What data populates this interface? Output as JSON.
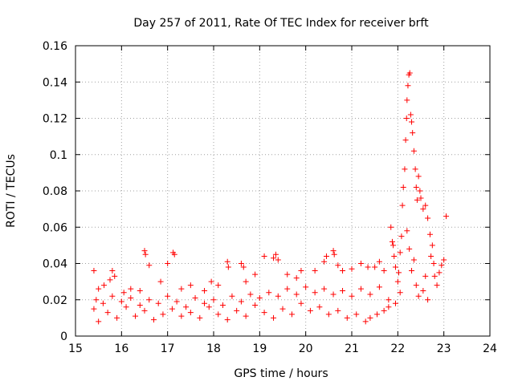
{
  "chart_data": {
    "type": "scatter",
    "title": "Day 257 of 2011, Rate Of TEC Index for receiver brft",
    "xlabel": "GPS time / hours",
    "ylabel": "ROTI / TECUs",
    "xlim": [
      15,
      24
    ],
    "ylim": [
      0,
      0.16
    ],
    "xticks": [
      "15",
      "16",
      "17",
      "18",
      "19",
      "20",
      "21",
      "22",
      "23",
      "24"
    ],
    "yticks": [
      "0",
      "0.02",
      "0.04",
      "0.06",
      "0.08",
      "0.1",
      "0.12",
      "0.14",
      "0.16"
    ],
    "grid": true,
    "marker": "+",
    "color": "#ff0000",
    "series": [
      {
        "name": "ROTI",
        "points": [
          [
            15.4,
            0.036
          ],
          [
            15.5,
            0.026
          ],
          [
            15.62,
            0.028
          ],
          [
            15.75,
            0.031
          ],
          [
            15.8,
            0.036
          ],
          [
            15.85,
            0.033
          ],
          [
            16.05,
            0.024
          ],
          [
            16.2,
            0.026
          ],
          [
            16.4,
            0.025
          ],
          [
            16.5,
            0.047
          ],
          [
            16.52,
            0.045
          ],
          [
            16.6,
            0.039
          ],
          [
            16.85,
            0.03
          ],
          [
            17.0,
            0.04
          ],
          [
            17.12,
            0.046
          ],
          [
            17.15,
            0.045
          ],
          [
            17.3,
            0.026
          ],
          [
            17.5,
            0.028
          ],
          [
            17.8,
            0.025
          ],
          [
            17.95,
            0.03
          ],
          [
            18.1,
            0.028
          ],
          [
            18.3,
            0.041
          ],
          [
            18.32,
            0.038
          ],
          [
            18.6,
            0.04
          ],
          [
            18.65,
            0.038
          ],
          [
            18.7,
            0.03
          ],
          [
            18.9,
            0.034
          ],
          [
            19.1,
            0.044
          ],
          [
            19.3,
            0.043
          ],
          [
            19.35,
            0.045
          ],
          [
            19.4,
            0.042
          ],
          [
            19.6,
            0.034
          ],
          [
            19.8,
            0.032
          ],
          [
            19.9,
            0.036
          ],
          [
            20.2,
            0.036
          ],
          [
            20.4,
            0.041
          ],
          [
            20.45,
            0.044
          ],
          [
            20.6,
            0.047
          ],
          [
            20.62,
            0.045
          ],
          [
            20.7,
            0.039
          ],
          [
            20.8,
            0.036
          ],
          [
            21.0,
            0.037
          ],
          [
            21.2,
            0.04
          ],
          [
            21.35,
            0.038
          ],
          [
            21.5,
            0.038
          ],
          [
            21.6,
            0.041
          ],
          [
            21.7,
            0.036
          ],
          [
            21.85,
            0.06
          ],
          [
            21.88,
            0.052
          ],
          [
            21.9,
            0.05
          ],
          [
            21.92,
            0.044
          ],
          [
            21.95,
            0.038
          ],
          [
            22.0,
            0.03
          ],
          [
            22.02,
            0.035
          ],
          [
            22.05,
            0.046
          ],
          [
            22.08,
            0.055
          ],
          [
            22.1,
            0.072
          ],
          [
            22.12,
            0.082
          ],
          [
            22.15,
            0.092
          ],
          [
            22.17,
            0.108
          ],
          [
            22.19,
            0.12
          ],
          [
            22.2,
            0.13
          ],
          [
            22.22,
            0.138
          ],
          [
            22.24,
            0.144
          ],
          [
            22.26,
            0.145
          ],
          [
            22.28,
            0.122
          ],
          [
            22.3,
            0.118
          ],
          [
            22.32,
            0.112
          ],
          [
            22.35,
            0.102
          ],
          [
            22.38,
            0.092
          ],
          [
            22.4,
            0.082
          ],
          [
            22.42,
            0.075
          ],
          [
            22.45,
            0.088
          ],
          [
            22.48,
            0.08
          ],
          [
            22.5,
            0.076
          ],
          [
            22.55,
            0.07
          ],
          [
            22.6,
            0.072
          ],
          [
            22.65,
            0.065
          ],
          [
            22.7,
            0.056
          ],
          [
            22.75,
            0.05
          ],
          [
            22.78,
            0.04
          ],
          [
            22.8,
            0.033
          ],
          [
            22.85,
            0.028
          ],
          [
            22.9,
            0.035
          ],
          [
            22.95,
            0.039
          ],
          [
            23.0,
            0.042
          ],
          [
            23.05,
            0.066
          ],
          [
            22.2,
            0.058
          ],
          [
            22.25,
            0.048
          ],
          [
            22.3,
            0.036
          ],
          [
            22.35,
            0.042
          ],
          [
            22.4,
            0.028
          ],
          [
            22.45,
            0.022
          ],
          [
            22.55,
            0.025
          ],
          [
            22.6,
            0.033
          ],
          [
            22.65,
            0.02
          ],
          [
            22.72,
            0.044
          ],
          [
            21.4,
            0.01
          ],
          [
            21.55,
            0.012
          ],
          [
            21.7,
            0.014
          ],
          [
            21.8,
            0.016
          ],
          [
            21.95,
            0.018
          ],
          [
            22.05,
            0.024
          ],
          [
            21.3,
            0.008
          ],
          [
            21.1,
            0.012
          ],
          [
            20.9,
            0.01
          ],
          [
            20.7,
            0.014
          ],
          [
            20.5,
            0.012
          ],
          [
            20.3,
            0.016
          ],
          [
            20.1,
            0.014
          ],
          [
            19.9,
            0.018
          ],
          [
            19.7,
            0.012
          ],
          [
            19.5,
            0.015
          ],
          [
            19.3,
            0.01
          ],
          [
            19.1,
            0.013
          ],
          [
            18.9,
            0.017
          ],
          [
            18.7,
            0.011
          ],
          [
            18.5,
            0.014
          ],
          [
            18.3,
            0.009
          ],
          [
            18.1,
            0.012
          ],
          [
            17.9,
            0.016
          ],
          [
            17.7,
            0.01
          ],
          [
            17.5,
            0.013
          ],
          [
            17.3,
            0.011
          ],
          [
            17.1,
            0.015
          ],
          [
            16.9,
            0.012
          ],
          [
            16.7,
            0.009
          ],
          [
            16.5,
            0.014
          ],
          [
            16.3,
            0.011
          ],
          [
            16.1,
            0.016
          ],
          [
            15.9,
            0.01
          ],
          [
            15.7,
            0.013
          ],
          [
            15.5,
            0.008
          ],
          [
            15.4,
            0.015
          ],
          [
            15.45,
            0.02
          ],
          [
            15.6,
            0.018
          ],
          [
            15.8,
            0.022
          ],
          [
            16.0,
            0.019
          ],
          [
            16.2,
            0.021
          ],
          [
            16.4,
            0.017
          ],
          [
            16.6,
            0.02
          ],
          [
            16.8,
            0.018
          ],
          [
            17.0,
            0.022
          ],
          [
            17.2,
            0.019
          ],
          [
            17.4,
            0.016
          ],
          [
            17.6,
            0.021
          ],
          [
            17.8,
            0.018
          ],
          [
            18.0,
            0.02
          ],
          [
            18.2,
            0.017
          ],
          [
            18.4,
            0.022
          ],
          [
            18.6,
            0.019
          ],
          [
            18.8,
            0.023
          ],
          [
            19.0,
            0.021
          ],
          [
            19.2,
            0.024
          ],
          [
            19.4,
            0.022
          ],
          [
            19.6,
            0.026
          ],
          [
            19.8,
            0.023
          ],
          [
            20.0,
            0.027
          ],
          [
            20.2,
            0.024
          ],
          [
            20.4,
            0.026
          ],
          [
            20.6,
            0.023
          ],
          [
            20.8,
            0.025
          ],
          [
            21.0,
            0.022
          ],
          [
            21.2,
            0.026
          ],
          [
            21.4,
            0.023
          ],
          [
            21.6,
            0.027
          ],
          [
            21.8,
            0.02
          ]
        ]
      }
    ]
  }
}
